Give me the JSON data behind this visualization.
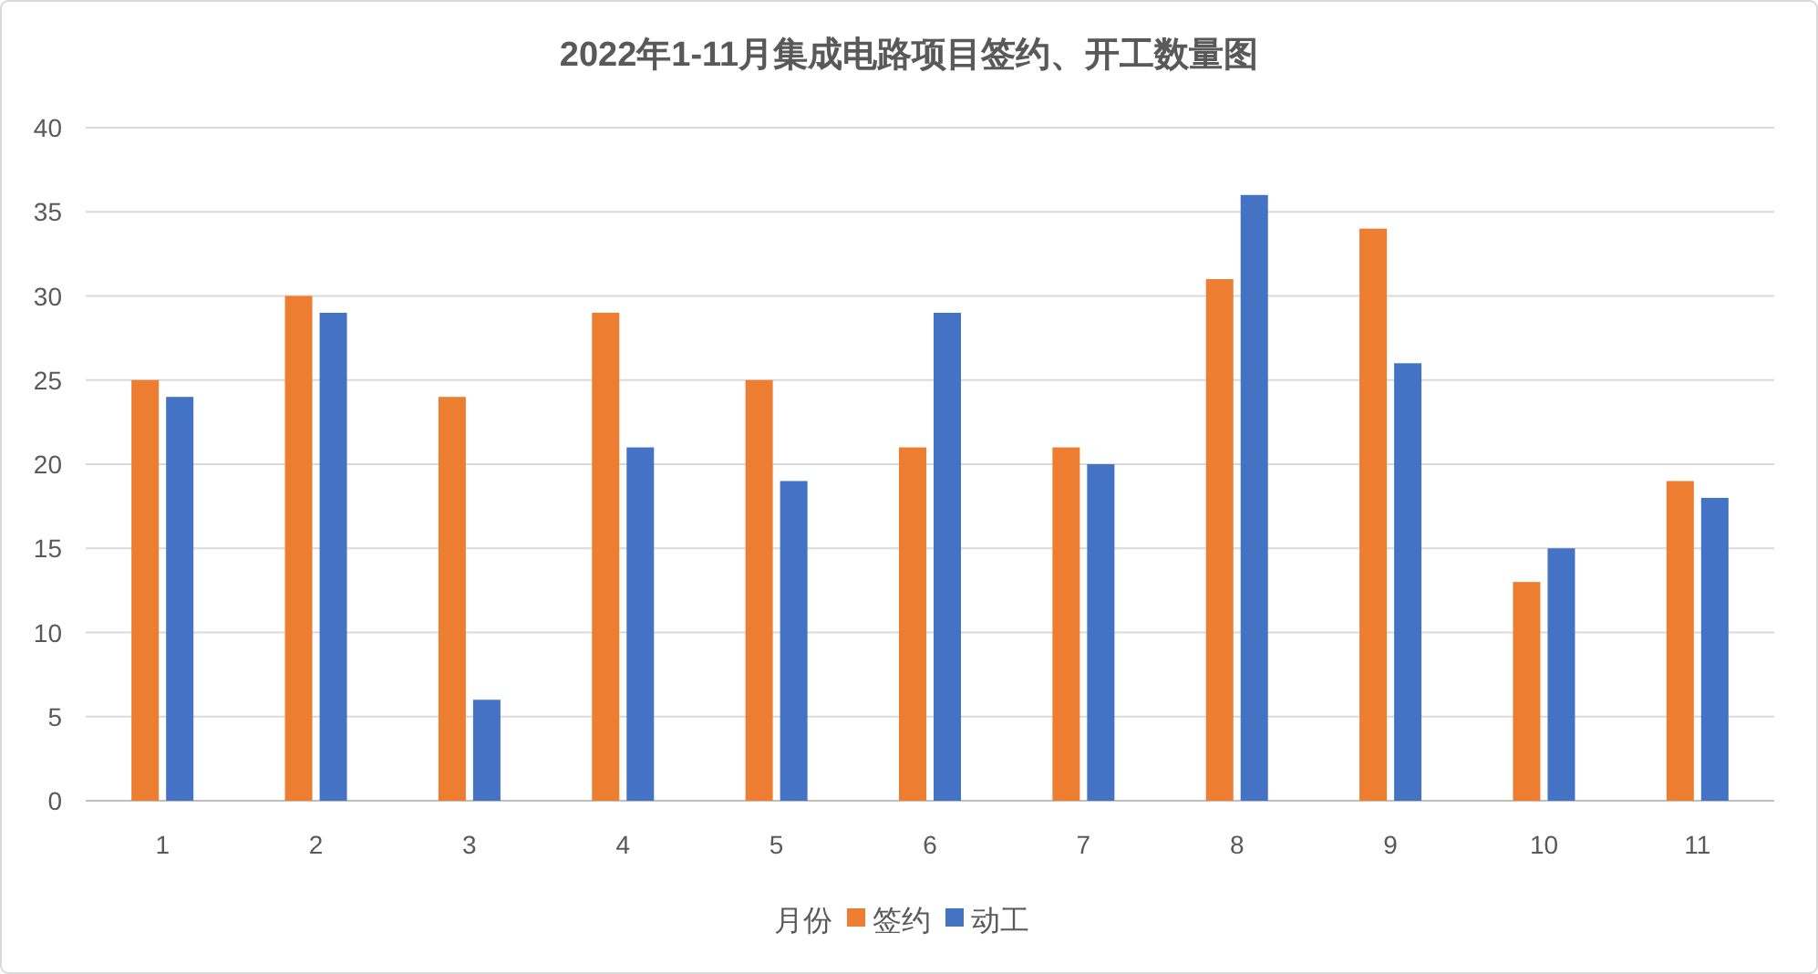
{
  "chart_data": {
    "type": "bar",
    "title": "2022年1-11月集成电路项目签约、开工数量图",
    "categories": [
      "1",
      "2",
      "3",
      "4",
      "5",
      "6",
      "7",
      "8",
      "9",
      "10",
      "11"
    ],
    "series": [
      {
        "name": "签约",
        "color": "#ed7d31",
        "values": [
          25,
          30,
          24,
          29,
          25,
          21,
          21,
          31,
          34,
          13,
          19
        ]
      },
      {
        "name": "动工",
        "color": "#4472c4",
        "values": [
          24,
          29,
          6,
          21,
          19,
          29,
          20,
          36,
          26,
          15,
          18
        ]
      }
    ],
    "legend_title": "月份",
    "legend": "bottom",
    "ylim": [
      0,
      40
    ],
    "yticks": [
      0,
      5,
      10,
      15,
      20,
      25,
      30,
      35,
      40
    ],
    "grid": "y"
  }
}
